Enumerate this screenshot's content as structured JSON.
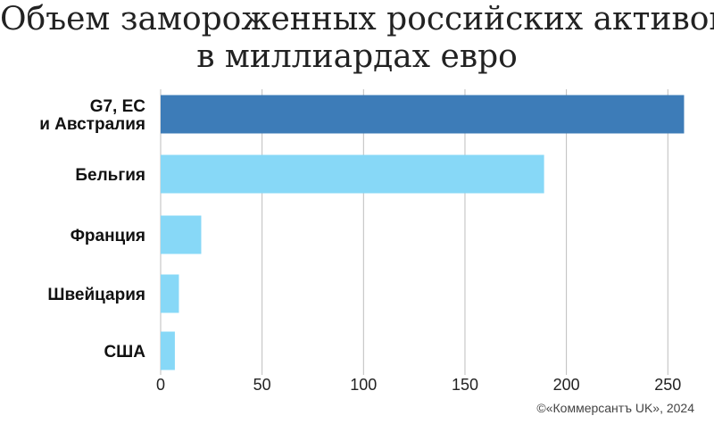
{
  "chart_data": {
    "type": "bar",
    "orientation": "horizontal",
    "title_lines": [
      "Объем замороженных российских активов",
      "в миллиардах евро"
    ],
    "categories": [
      [
        "G7, ЕС",
        "и Австралия"
      ],
      [
        "Бельгия"
      ],
      [
        "Франция"
      ],
      [
        "Швейцария"
      ],
      [
        "США"
      ]
    ],
    "values": [
      258,
      189,
      20,
      9,
      7
    ],
    "colors": [
      "#3d7cb8",
      "#87d8f7",
      "#87d8f7",
      "#87d8f7",
      "#87d8f7"
    ],
    "xlim": [
      0,
      260
    ],
    "xticks": [
      0,
      50,
      100,
      150,
      200,
      250
    ],
    "grid": "vertical",
    "xlabel": "",
    "ylabel": ""
  },
  "credit": "©«Коммерсантъ UK», 2024"
}
